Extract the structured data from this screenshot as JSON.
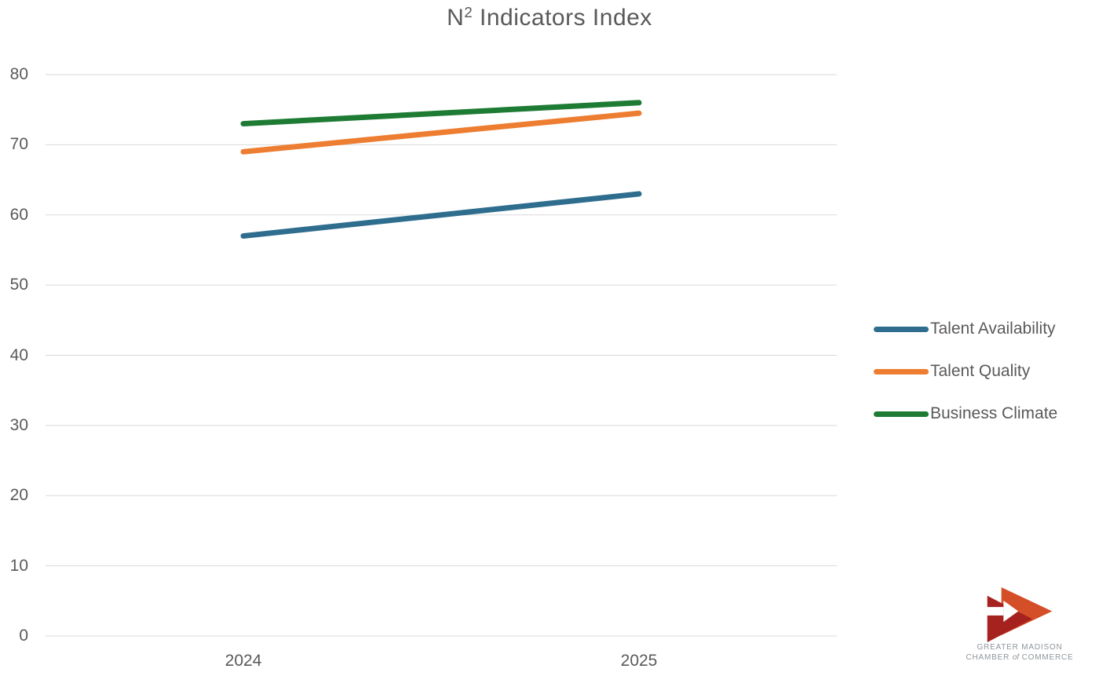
{
  "chart_data": {
    "type": "line",
    "title": "N² Indicators Index",
    "title_parts": {
      "base": "N",
      "superscript": "2",
      "rest": " Indicators Index"
    },
    "categories": [
      "2024",
      "2025"
    ],
    "series": [
      {
        "name": "Talent Availability",
        "color": "#2E6D8E",
        "values": [
          57,
          63
        ]
      },
      {
        "name": "Talent Quality",
        "color": "#ED7D31",
        "values": [
          69,
          74.5
        ]
      },
      {
        "name": "Business Climate",
        "color": "#1E7B34",
        "values": [
          73,
          76
        ]
      }
    ],
    "ylim": [
      0,
      80
    ],
    "yticks": [
      0,
      10,
      20,
      30,
      40,
      50,
      60,
      70,
      80
    ],
    "grid": true,
    "gridline_color": "#D9D9D9",
    "text_color": "#595959",
    "legend_position": "right",
    "line_width": 7
  },
  "logo": {
    "line1": "GREATER MADISON",
    "line2_prefix": "CHAMBER ",
    "line2_of": "of",
    "line2_suffix": " COMMERCE",
    "text_color": "#8F959B",
    "arrow_dark_color": "#A6221F",
    "arrow_bright_color": "#D44E27"
  }
}
